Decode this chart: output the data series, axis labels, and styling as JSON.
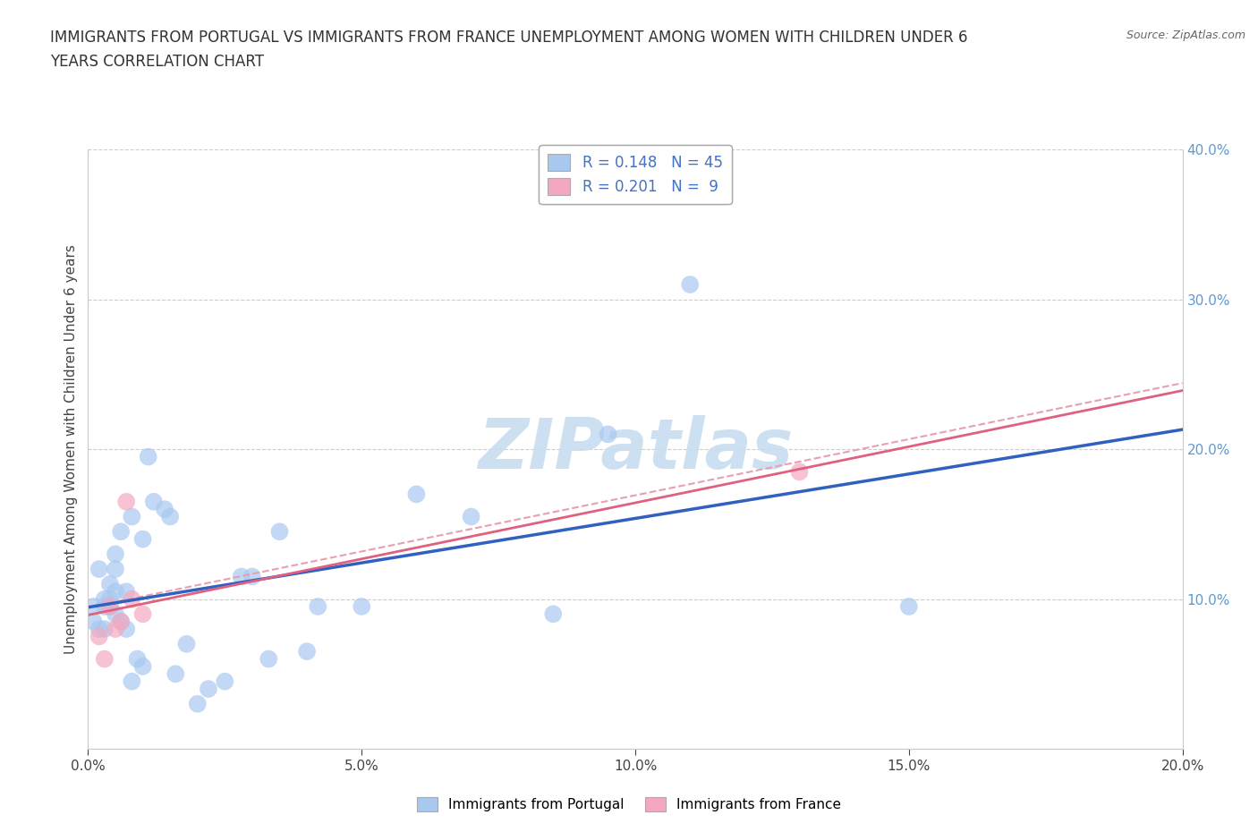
{
  "title_line1": "IMMIGRANTS FROM PORTUGAL VS IMMIGRANTS FROM FRANCE UNEMPLOYMENT AMONG WOMEN WITH CHILDREN UNDER 6",
  "title_line2": "YEARS CORRELATION CHART",
  "source": "Source: ZipAtlas.com",
  "ylabel": "Unemployment Among Women with Children Under 6 years",
  "xlim": [
    0.0,
    0.2
  ],
  "ylim": [
    0.0,
    0.4
  ],
  "xticks": [
    0.0,
    0.05,
    0.1,
    0.15,
    0.2
  ],
  "yticks": [
    0.0,
    0.1,
    0.2,
    0.3,
    0.4
  ],
  "portugal_color": "#a8c8f0",
  "france_color": "#f4a8c0",
  "portugal_line_color": "#3060c0",
  "france_line_color": "#e06080",
  "france_dash_color": "#e8a0b0",
  "tick_color": "#5b9bd5",
  "watermark_color": "#c8ddf0",
  "legend_R_portugal": "0.148",
  "legend_N_portugal": "45",
  "legend_R_france": "0.201",
  "legend_N_france": "9",
  "portugal_x": [
    0.001,
    0.001,
    0.002,
    0.002,
    0.003,
    0.003,
    0.003,
    0.004,
    0.004,
    0.004,
    0.005,
    0.005,
    0.005,
    0.005,
    0.006,
    0.006,
    0.007,
    0.007,
    0.008,
    0.008,
    0.009,
    0.01,
    0.01,
    0.011,
    0.012,
    0.014,
    0.015,
    0.016,
    0.018,
    0.02,
    0.022,
    0.025,
    0.028,
    0.03,
    0.033,
    0.035,
    0.04,
    0.042,
    0.05,
    0.06,
    0.07,
    0.085,
    0.095,
    0.11,
    0.15
  ],
  "portugal_y": [
    0.085,
    0.095,
    0.08,
    0.12,
    0.095,
    0.1,
    0.08,
    0.095,
    0.11,
    0.1,
    0.12,
    0.105,
    0.09,
    0.13,
    0.085,
    0.145,
    0.105,
    0.08,
    0.045,
    0.155,
    0.06,
    0.055,
    0.14,
    0.195,
    0.165,
    0.16,
    0.155,
    0.05,
    0.07,
    0.03,
    0.04,
    0.045,
    0.115,
    0.115,
    0.06,
    0.145,
    0.065,
    0.095,
    0.095,
    0.17,
    0.155,
    0.09,
    0.21,
    0.31,
    0.095
  ],
  "france_x": [
    0.002,
    0.003,
    0.004,
    0.005,
    0.006,
    0.007,
    0.008,
    0.01,
    0.13
  ],
  "france_y": [
    0.075,
    0.06,
    0.095,
    0.08,
    0.085,
    0.165,
    0.1,
    0.09,
    0.185
  ]
}
